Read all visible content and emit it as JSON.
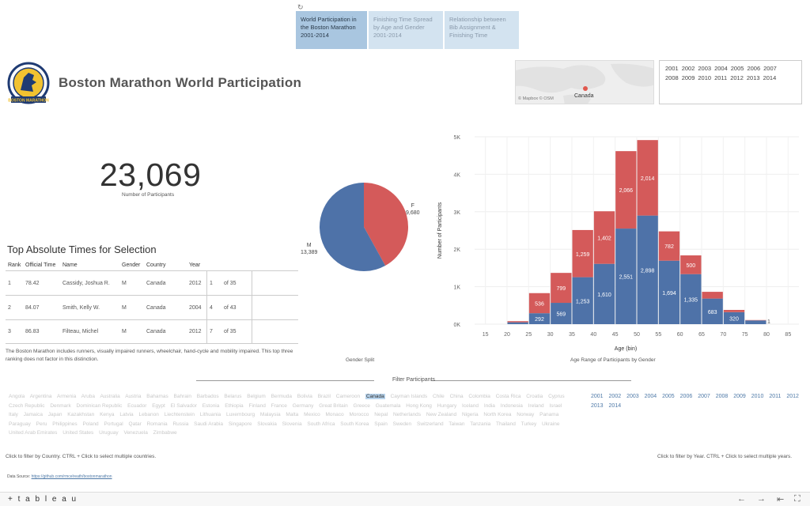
{
  "reset_icon": "refresh-icon",
  "tabs": [
    {
      "label": "World Participation in the Boston Marathon 2001-2014",
      "active": true
    },
    {
      "label": "Finishing Time Spread by Age and Gender 2001-2014",
      "active": false
    },
    {
      "label": "Relationship between Bib Assignment & Finishing Time",
      "active": false
    }
  ],
  "header": {
    "logo_icon": "boston-athletic-association-logo",
    "title": "Boston Marathon World Participation"
  },
  "map": {
    "label": "Canada",
    "credit": "© Mapbox  © OSM"
  },
  "year_selector": [
    "2001",
    "2002",
    "2003",
    "2004",
    "2005",
    "2006",
    "2007",
    "2008",
    "2009",
    "2010",
    "2011",
    "2012",
    "2013",
    "2014"
  ],
  "kpi": {
    "value": "23,069",
    "caption": "Number of Participants"
  },
  "top_times": {
    "title": "Top Absolute Times for Selection",
    "columns": [
      "Rank",
      "Official Time",
      "Name",
      "Gender",
      "Country",
      "Year"
    ],
    "rows": [
      {
        "rank": "1",
        "time": "78.42",
        "name": "Cassidy, Joshua R.",
        "gender": "M",
        "country": "Canada",
        "year": "2012",
        "year_rank": "1",
        "of": "of 35"
      },
      {
        "rank": "2",
        "time": "84.07",
        "name": "Smith, Kelly W.",
        "gender": "M",
        "country": "Canada",
        "year": "2004",
        "year_rank": "4",
        "of": "of 43"
      },
      {
        "rank": "3",
        "time": "86.83",
        "name": "Filteau, Michel",
        "gender": "M",
        "country": "Canada",
        "year": "2012",
        "year_rank": "7",
        "of": "of 35"
      }
    ],
    "note": "The Boston Marathon includes runners, visually impaired runners, wheelchair, hand-cycle and mobility impaired. This top three ranking does not factor in this distinction."
  },
  "gender": {
    "caption": "Gender Split",
    "m_label": "M",
    "m_value": "13,389",
    "f_label": "F",
    "f_value": "9,680",
    "m_count": 13389,
    "f_count": 9680,
    "m_color": "#4e72a8",
    "f_color": "#d45a5a"
  },
  "chart_data": {
    "type": "bar",
    "stacked": true,
    "xlabel": "Age (bin)",
    "ylabel": "Number of Participants",
    "caption": "Age Range of Participants by Gender",
    "x_ticks": [
      "15",
      "20",
      "25",
      "30",
      "35",
      "40",
      "45",
      "50",
      "55",
      "60",
      "65",
      "70",
      "75",
      "80",
      "85"
    ],
    "y_ticks": [
      "0K",
      "1K",
      "2K",
      "3K",
      "4K",
      "5K"
    ],
    "ylim": [
      0,
      5000
    ],
    "xlim": [
      12.5,
      87.5
    ],
    "bins": [
      20,
      25,
      30,
      35,
      40,
      45,
      50,
      55,
      60,
      65,
      70,
      75
    ],
    "series": [
      {
        "name": "M",
        "color": "#4e72a8",
        "values": [
          50,
          292,
          569,
          1253,
          1610,
          2551,
          2898,
          1694,
          1335,
          683,
          320,
          100
        ]
      },
      {
        "name": "F",
        "color": "#d45a5a",
        "values": [
          30,
          536,
          799,
          1259,
          1402,
          2066,
          2014,
          782,
          500,
          180,
          60,
          10
        ]
      }
    ],
    "bar_labels_m": [
      "",
      "292",
      "569",
      "1,253",
      "1,610",
      "2,551",
      "2,898",
      "1,694",
      "1,335",
      "683",
      "320",
      ""
    ],
    "bar_labels_f": [
      "",
      "536",
      "799",
      "1,259",
      "1,402",
      "2,066",
      "2,014",
      "782",
      "500",
      "",
      "",
      ""
    ],
    "extra_label": {
      "x": 80,
      "text": "1"
    }
  },
  "filter": {
    "title": "Filter Participants",
    "countries": [
      "Angola",
      "Argentina",
      "Armenia",
      "Aruba",
      "Australia",
      "Austria",
      "Bahamas",
      "Bahrain",
      "Barbados",
      "Belarus",
      "Belgium",
      "Bermuda",
      "Bolivia",
      "Brazil",
      "Cameroon",
      "Canada",
      "Cayman Islands",
      "Chile",
      "China",
      "Colombia",
      "Costa Rica",
      "Croatia",
      "Cyprus",
      "Czech Republic",
      "Denmark",
      "Dominican Republic",
      "Ecuador",
      "Egypt",
      "El Salvador",
      "Estonia",
      "Ethiopia",
      "Finland",
      "France",
      "Germany",
      "Great Britain",
      "Greece",
      "Guatemala",
      "Hong Kong",
      "Hungary",
      "Iceland",
      "India",
      "Indonesia",
      "Ireland",
      "Israel",
      "Italy",
      "Jamaica",
      "Japan",
      "Kazakhstan",
      "Kenya",
      "Latvia",
      "Lebanon",
      "Liechtenstein",
      "Lithuania",
      "Luxembourg",
      "Malaysia",
      "Malta",
      "Mexico",
      "Monaco",
      "Morocco",
      "Nepal",
      "Netherlands",
      "New Zealand",
      "Nigeria",
      "North Korea",
      "Norway",
      "Panama",
      "Paraguay",
      "Peru",
      "Philippines",
      "Poland",
      "Portugal",
      "Qatar",
      "Romania",
      "Russia",
      "Saudi Arabia",
      "Singapore",
      "Slovakia",
      "Slovenia",
      "South Africa",
      "South Korea",
      "Spain",
      "Sweden",
      "Switzerland",
      "Taiwan",
      "Tanzania",
      "Thailand",
      "Turkey",
      "Ukraine",
      "United Arab Emirates",
      "United States",
      "Uruguay",
      "Venezuela",
      "Zimbabwe"
    ],
    "selected_country": "Canada",
    "years": [
      "2001",
      "2002",
      "2003",
      "2004",
      "2005",
      "2006",
      "2007",
      "2008",
      "2009",
      "2010",
      "2011",
      "2012",
      "2013",
      "2014"
    ],
    "hint_country": "Click to filter by Country. CTRL + Click to select multiple countries.",
    "hint_year": "Click to filter by Year. CTRL + Click to select multiple years."
  },
  "source": {
    "label": "Data Source:",
    "link": "https://github.com/rmcelreath/bostonmarathon"
  },
  "footer": {
    "brand": "+ t a b l e a u",
    "undo_icon": "undo-icon",
    "redo_icon": "redo-icon",
    "revert_icon": "revert-icon",
    "fullscreen_icon": "fullscreen-icon"
  }
}
